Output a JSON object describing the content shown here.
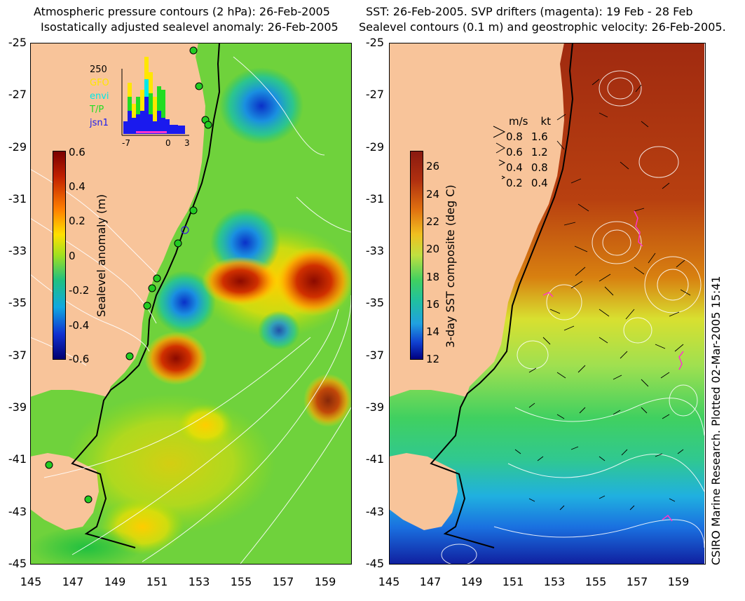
{
  "left_title_line1": "Atmospheric pressure contours (2 hPa): 26-Feb-2005",
  "left_title_line2": "Isostatically adjusted sealevel anomaly: 26-Feb-2005",
  "right_title_line1": "SST: 26-Feb-2005. SVP drifters (magenta): 19 Feb - 28 Feb",
  "right_title_line2": "Sealevel contours (0.1 m) and geostrophic velocity: 26-Feb-2005.",
  "y_ticks": [
    "-25",
    "-27",
    "-29",
    "-31",
    "-33",
    "-35",
    "-37",
    "-39",
    "-41",
    "-43",
    "-45"
  ],
  "x_ticks": [
    "145",
    "147",
    "149",
    "151",
    "153",
    "155",
    "157",
    "159"
  ],
  "left_colorbar": {
    "title": "Sealevel anomaly (m)",
    "labels": [
      "0.6",
      "0.4",
      "0.2",
      "0",
      "-0.2",
      "-0.4",
      "-0.6"
    ]
  },
  "right_colorbar": {
    "title": "3-day SST composite (deg C)",
    "labels": [
      "26",
      "24",
      "22",
      "20",
      "18",
      "16",
      "14",
      "12"
    ]
  },
  "sat_legend": {
    "max_label": "250",
    "items": [
      {
        "label": "GFO",
        "color": "#ffe600"
      },
      {
        "label": "envi",
        "color": "#00e8e8"
      },
      {
        "label": "T/P",
        "color": "#22dd22"
      },
      {
        "label": "jsn1",
        "color": "#1a1aee"
      }
    ],
    "axis_labels": [
      "-7",
      "0",
      "3"
    ]
  },
  "vector_legend": {
    "header_ms": "m/s",
    "header_kt": "kt",
    "rows": [
      {
        "ms": "0.8",
        "kt": "1.6"
      },
      {
        "ms": "0.6",
        "kt": "1.2"
      },
      {
        "ms": "0.4",
        "kt": "0.8"
      },
      {
        "ms": "0.2",
        "kt": "0.4"
      }
    ]
  },
  "credit": "CSIRO Marine Research. Plotted 02-Mar-2005 15:41",
  "colors": {
    "land": "#f8c49a",
    "drifter": "#ff33cc",
    "tide_gauge": "#22cc22"
  }
}
